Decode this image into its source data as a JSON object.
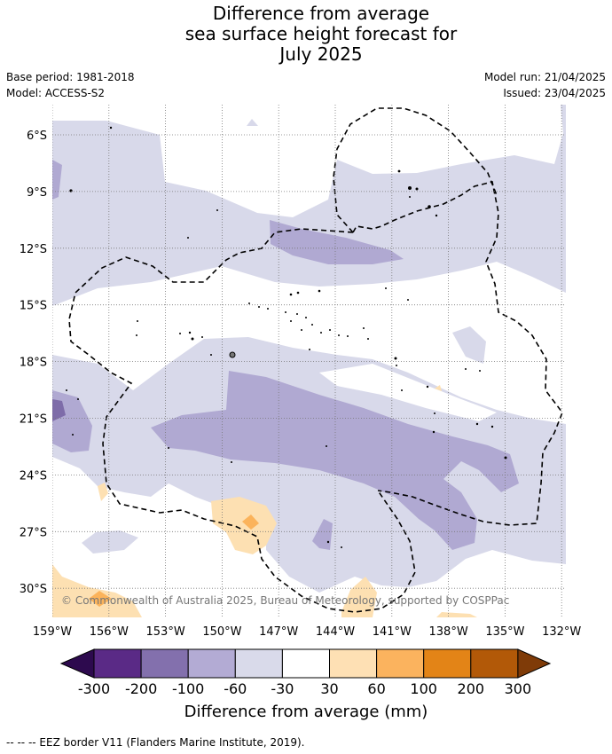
{
  "title": {
    "line1": "Difference from average",
    "line2": "sea surface height forecast for",
    "line3": "July 2025"
  },
  "meta": {
    "base_period": "Base period: 1981-2018",
    "model": "Model: ACCESS-S2",
    "model_run": "Model run: 21/04/2025",
    "issued": "Issued: 23/04/2025"
  },
  "map": {
    "lat_labels": [
      "6°S",
      "9°S",
      "12°S",
      "15°S",
      "18°S",
      "21°S",
      "24°S",
      "27°S",
      "30°S"
    ],
    "lon_labels": [
      "159°W",
      "156°W",
      "153°W",
      "150°W",
      "147°W",
      "144°W",
      "141°W",
      "138°W",
      "135°W",
      "132°W"
    ],
    "copyright": "© Commonwealth of Australia 2025, Bureau of Meteorology, supported by COSPPac",
    "colors": {
      "neg_light": "#d8d9ea",
      "neg_mid": "#b0a9d2",
      "neg_dark": "#7e6ca9",
      "pos_light": "#fde0b2",
      "pos_mid": "#fbb35b",
      "eez_line": "#000000"
    }
  },
  "colorbar": {
    "ticks": [
      "-300",
      "-200",
      "-100",
      "-60",
      "-30",
      "30",
      "60",
      "100",
      "200",
      "300"
    ],
    "colors": [
      "#2d0a4e",
      "#5a2a86",
      "#8370ad",
      "#b3abd4",
      "#d9daea",
      "#ffffff",
      "#fee0b4",
      "#fbb35e",
      "#e38417",
      "#b25908",
      "#7f3b08"
    ],
    "label": "Difference from average (mm)"
  },
  "footnote": "--  --  -- EEZ border V11 (Flanders Marine Institute, 2019)."
}
